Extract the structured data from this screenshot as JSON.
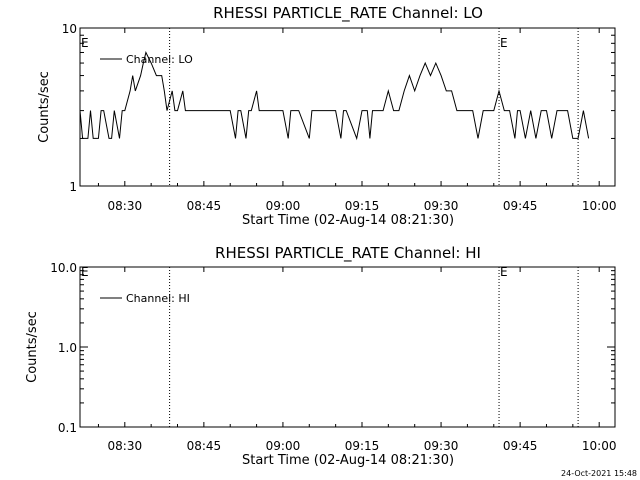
{
  "footer": {
    "timestamp": "24-Oct-2021 15:48"
  },
  "chart_data": [
    {
      "type": "line",
      "title": "RHESSI PARTICLE_RATE Channel: LO",
      "xlabel": "Start Time (02-Aug-14 08:21:30)",
      "ylabel": "Counts/sec",
      "x_start": "08:21:30",
      "x_end": "10:03:00",
      "xticks": [
        "08:30",
        "08:45",
        "09:00",
        "09:15",
        "09:30",
        "09:45",
        "10:00"
      ],
      "y_scale": "log",
      "ylim": [
        1,
        10
      ],
      "yticks": [
        "1",
        "10"
      ],
      "legend": "top-left",
      "series": [
        {
          "name": "Channel: LO",
          "color": "#000000",
          "x": [
            "08:21:30",
            "08:22:00",
            "08:23:00",
            "08:23:30",
            "08:24:00",
            "08:25:00",
            "08:25:30",
            "08:26:00",
            "08:27:00",
            "08:27:30",
            "08:28:00",
            "08:29:00",
            "08:29:30",
            "08:30:00",
            "08:31:00",
            "08:31:30",
            "08:32:00",
            "08:33:00",
            "08:33:30",
            "08:34:00",
            "08:35:00",
            "08:36:00",
            "08:37:00",
            "08:37:30",
            "08:38:00",
            "08:39:00",
            "08:39:30",
            "08:40:00",
            "08:41:00",
            "08:41:30",
            "08:42:00",
            "08:43:00",
            "08:44:00",
            "08:45:00",
            "08:50:00",
            "08:51:00",
            "08:51:30",
            "08:52:00",
            "08:53:00",
            "08:53:30",
            "08:54:00",
            "08:55:00",
            "08:55:30",
            "08:56:00",
            "09:00:00",
            "09:01:00",
            "09:01:30",
            "09:02:00",
            "09:03:00",
            "09:05:00",
            "09:05:30",
            "09:06:00",
            "09:10:00",
            "09:11:00",
            "09:11:30",
            "09:12:00",
            "09:14:00",
            "09:15:00",
            "09:16:00",
            "09:16:30",
            "09:17:00",
            "09:18:00",
            "09:19:00",
            "09:20:00",
            "09:21:00",
            "09:22:00",
            "09:23:00",
            "09:24:00",
            "09:25:00",
            "09:26:00",
            "09:27:00",
            "09:28:00",
            "09:29:00",
            "09:30:00",
            "09:31:00",
            "09:32:00",
            "09:33:00",
            "09:34:00",
            "09:35:00",
            "09:36:00",
            "09:37:00",
            "09:38:00",
            "09:39:00",
            "09:40:00",
            "09:41:00",
            "09:42:00",
            "09:43:00",
            "09:44:00",
            "09:44:30",
            "09:45:00",
            "09:46:00",
            "09:47:00",
            "09:48:00",
            "09:49:00",
            "09:50:00",
            "09:51:00",
            "09:52:00",
            "09:53:00",
            "09:54:00",
            "09:55:00",
            "09:56:00",
            "09:57:00",
            "09:58:00"
          ],
          "values": [
            3,
            2,
            2,
            3,
            2,
            2,
            3,
            3,
            2,
            2,
            3,
            2,
            3,
            3,
            4,
            5,
            4,
            5,
            6,
            7,
            6,
            5,
            5,
            4,
            3,
            4,
            3,
            3,
            4,
            3,
            3,
            3,
            3,
            3,
            3,
            2,
            3,
            3,
            2,
            3,
            3,
            4,
            3,
            3,
            3,
            2,
            3,
            3,
            3,
            2,
            3,
            3,
            3,
            2,
            3,
            3,
            2,
            3,
            3,
            2,
            3,
            3,
            3,
            4,
            3,
            3,
            4,
            5,
            4,
            5,
            6,
            5,
            6,
            5,
            4,
            4,
            3,
            3,
            3,
            3,
            2,
            3,
            3,
            3,
            4,
            3,
            3,
            2,
            3,
            3,
            2,
            3,
            2,
            3,
            3,
            2,
            3,
            3,
            3,
            2,
            2,
            3,
            2
          ],
          "dotted_markers": [
            "08:38:30",
            "09:41:00",
            "09:56:00"
          ],
          "annotations": [
            "E",
            "E"
          ]
        }
      ]
    },
    {
      "type": "line",
      "title": "RHESSI PARTICLE_RATE Channel: HI",
      "xlabel": "Start Time (02-Aug-14 08:21:30)",
      "ylabel": "Counts/sec",
      "x_start": "08:21:30",
      "x_end": "10:03:00",
      "xticks": [
        "08:30",
        "08:45",
        "09:00",
        "09:15",
        "09:30",
        "09:45",
        "10:00"
      ],
      "y_scale": "log",
      "ylim": [
        0.1,
        10
      ],
      "yticks": [
        "0.1",
        "1.0",
        "10.0"
      ],
      "legend": "top-left",
      "series": [
        {
          "name": "Channel: HI",
          "color": "#000000",
          "x": [],
          "values": [],
          "dotted_markers": [
            "08:38:30",
            "09:41:00",
            "09:56:00"
          ],
          "annotations": [
            "E",
            "E"
          ]
        }
      ]
    }
  ]
}
